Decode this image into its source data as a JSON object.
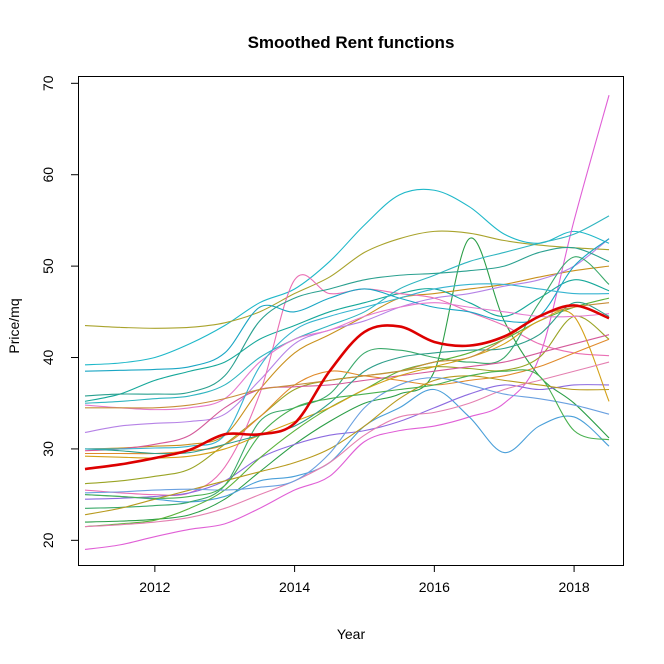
{
  "chart_data": {
    "type": "line",
    "title": "Smoothed Rent functions",
    "xlabel": "Year",
    "ylabel": "Price/mq",
    "xlim": [
      2010.9,
      2018.7
    ],
    "ylim": [
      17.3,
      70.8
    ],
    "xticks": [
      2012,
      2014,
      2016,
      2018
    ],
    "yticks": [
      20,
      30,
      40,
      50,
      60,
      70
    ],
    "grid": false,
    "legend": "none",
    "x": [
      2011,
      2011.5,
      2012,
      2012.5,
      2013,
      2013.5,
      2014,
      2014.5,
      2015,
      2015.5,
      2016,
      2016.5,
      2017,
      2017.5,
      2018,
      2018.5
    ],
    "mean_series": {
      "color": "#dd0000",
      "values": [
        27.8,
        28.3,
        29.0,
        29.9,
        31.6,
        31.6,
        32.8,
        38.5,
        42.8,
        43.4,
        41.7,
        41.3,
        42.3,
        44.5,
        45.7,
        44.3
      ]
    },
    "series": [
      {
        "color": "#1fb8c9",
        "values": [
          39.2,
          39.4,
          40.0,
          41.5,
          43.5,
          46.0,
          47.5,
          50.5,
          54.5,
          57.8,
          58.3,
          56.5,
          53.5,
          52.5,
          53.8,
          52.5
        ]
      },
      {
        "color": "#a9a32c",
        "values": [
          43.5,
          43.3,
          43.2,
          43.3,
          43.8,
          45.0,
          47.0,
          48.8,
          51.5,
          53.0,
          53.8,
          53.6,
          52.8,
          52.3,
          52.0,
          51.8
        ]
      },
      {
        "color": "#e05fd6",
        "values": [
          19.0,
          19.5,
          20.4,
          21.2,
          21.8,
          23.5,
          25.5,
          27.0,
          30.8,
          32.0,
          32.5,
          33.5,
          35.0,
          40.0,
          55.0,
          68.7
        ]
      },
      {
        "color": "#2b9e47",
        "values": [
          22.0,
          22.1,
          22.3,
          22.8,
          24.5,
          27.5,
          30.5,
          33.0,
          35.0,
          36.0,
          38.5,
          53.0,
          44.0,
          38.0,
          35.0,
          31.2
        ]
      },
      {
        "color": "#4a9fd9",
        "values": [
          25.0,
          24.8,
          24.5,
          24.2,
          24.8,
          26.5,
          27.0,
          28.5,
          32.5,
          34.5,
          36.5,
          33.5,
          29.6,
          32.5,
          33.5,
          30.3
        ]
      },
      {
        "color": "#c9911e",
        "values": [
          30.0,
          30.1,
          30.3,
          30.5,
          31.5,
          36.5,
          40.5,
          42.5,
          44.5,
          46.5,
          47.0,
          47.5,
          48.0,
          48.8,
          49.5,
          50.0
        ]
      },
      {
        "color": "#b582e6",
        "values": [
          31.8,
          32.5,
          32.8,
          33.0,
          33.8,
          37.5,
          41.5,
          43.0,
          44.0,
          45.5,
          46.5,
          47.0,
          47.8,
          48.5,
          50.0,
          53.0
        ]
      },
      {
        "color": "#16a89a",
        "values": [
          35.2,
          36.0,
          37.5,
          38.5,
          39.5,
          42.0,
          43.5,
          45.0,
          46.0,
          47.0,
          47.5,
          46.0,
          44.5,
          46.5,
          48.5,
          47.3
        ]
      },
      {
        "color": "#9aa425",
        "values": [
          26.2,
          26.5,
          27.0,
          27.8,
          30.5,
          33.5,
          36.5,
          37.5,
          38.0,
          38.5,
          39.0,
          38.8,
          38.6,
          40.0,
          44.5,
          42.0
        ]
      },
      {
        "color": "#ea6fb4",
        "values": [
          25.5,
          25.2,
          25.0,
          25.2,
          28.0,
          36.0,
          48.5,
          47.0,
          47.5,
          47.0,
          46.5,
          45.0,
          43.5,
          41.5,
          40.5,
          40.2
        ]
      },
      {
        "color": "#1aa6c4",
        "values": [
          38.5,
          38.6,
          38.7,
          39.0,
          40.5,
          45.5,
          45.0,
          46.5,
          47.5,
          46.5,
          45.5,
          45.0,
          44.0,
          44.5,
          50.0,
          53.0
        ]
      },
      {
        "color": "#3aa96a",
        "values": [
          23.5,
          23.6,
          23.8,
          24.2,
          26.0,
          33.0,
          34.5,
          36.0,
          40.5,
          40.8,
          40.0,
          39.5,
          40.0,
          46.0,
          51.0,
          48.0
        ]
      },
      {
        "color": "#e08a2b",
        "values": [
          29.5,
          29.5,
          29.5,
          29.8,
          30.5,
          33.5,
          37.0,
          38.5,
          38.0,
          37.5,
          37.0,
          37.5,
          38.0,
          39.0,
          40.5,
          42.0
        ]
      },
      {
        "color": "#8c6be0",
        "values": [
          24.5,
          24.6,
          24.8,
          25.2,
          26.5,
          29.0,
          30.5,
          31.5,
          32.0,
          33.0,
          34.5,
          36.0,
          37.0,
          36.5,
          37.0,
          37.0
        ]
      },
      {
        "color": "#d45a9a",
        "values": [
          29.8,
          30.0,
          30.5,
          31.5,
          34.5,
          36.5,
          36.8,
          37.0,
          37.5,
          38.0,
          38.5,
          39.0,
          39.5,
          40.5,
          41.5,
          42.5
        ]
      },
      {
        "color": "#5bb33a",
        "values": [
          21.5,
          21.8,
          22.2,
          23.5,
          25.5,
          29.0,
          32.0,
          34.5,
          36.5,
          38.5,
          39.5,
          40.5,
          42.0,
          44.0,
          45.5,
          46.5
        ]
      },
      {
        "color": "#2fb5c0",
        "values": [
          35.0,
          35.2,
          35.5,
          35.8,
          37.0,
          40.0,
          42.0,
          43.5,
          45.0,
          47.5,
          49.0,
          50.5,
          51.5,
          52.5,
          53.5,
          55.5
        ]
      },
      {
        "color": "#d4a017",
        "values": [
          29.2,
          29.1,
          29.0,
          29.2,
          30.0,
          31.5,
          33.0,
          34.5,
          36.5,
          38.0,
          39.0,
          40.0,
          41.5,
          44.0,
          44.5,
          35.2
        ]
      },
      {
        "color": "#e57ad0",
        "values": [
          34.8,
          34.5,
          34.3,
          34.5,
          35.5,
          39.5,
          42.0,
          43.0,
          44.5,
          45.5,
          46.0,
          45.5,
          45.0,
          44.5,
          44.5,
          44.8
        ]
      },
      {
        "color": "#2e9e8a",
        "values": [
          30.0,
          29.8,
          29.5,
          29.6,
          30.5,
          31.5,
          32.5,
          35.0,
          38.5,
          40.0,
          40.5,
          40.8,
          41.0,
          42.5,
          46.0,
          44.5
        ]
      },
      {
        "color": "#b89a1e",
        "values": [
          22.8,
          23.5,
          24.5,
          25.5,
          26.5,
          27.5,
          28.5,
          30.0,
          32.5,
          35.5,
          37.5,
          38.0,
          37.5,
          37.0,
          36.5,
          36.5
        ]
      },
      {
        "color": "#e47fb0",
        "values": [
          21.5,
          21.7,
          22.0,
          22.5,
          23.5,
          25.0,
          26.5,
          28.5,
          31.5,
          33.5,
          34.0,
          35.0,
          36.5,
          37.5,
          38.5,
          39.5
        ]
      },
      {
        "color": "#6aa0e0",
        "values": [
          25.2,
          25.3,
          25.5,
          25.6,
          25.5,
          25.8,
          26.5,
          29.5,
          34.5,
          37.0,
          37.8,
          37.0,
          36.0,
          35.5,
          34.8,
          33.8
        ]
      },
      {
        "color": "#2aa08f",
        "values": [
          35.8,
          36.0,
          36.0,
          36.2,
          38.0,
          44.0,
          46.5,
          47.5,
          48.5,
          49.0,
          49.2,
          49.5,
          50.0,
          51.5,
          52.0,
          50.5
        ]
      },
      {
        "color": "#c78e3a",
        "values": [
          34.5,
          34.5,
          34.5,
          34.8,
          35.5,
          36.5,
          37.0,
          37.5,
          38.0,
          38.5,
          39.5,
          40.0,
          42.0,
          44.5,
          45.5,
          46.0
        ]
      },
      {
        "color": "#48b04f",
        "values": [
          25.0,
          24.8,
          24.6,
          24.8,
          26.0,
          31.5,
          34.5,
          35.5,
          36.0,
          36.5,
          37.0,
          38.0,
          38.5,
          38.0,
          32.0,
          31.0
        ]
      },
      {
        "color": "#36b4d0",
        "values": [
          30.0,
          30.0,
          30.1,
          30.3,
          31.5,
          39.0,
          43.0,
          44.5,
          45.5,
          46.5,
          47.5,
          48.0,
          48.0,
          47.5,
          47.0,
          47.0
        ]
      }
    ]
  }
}
